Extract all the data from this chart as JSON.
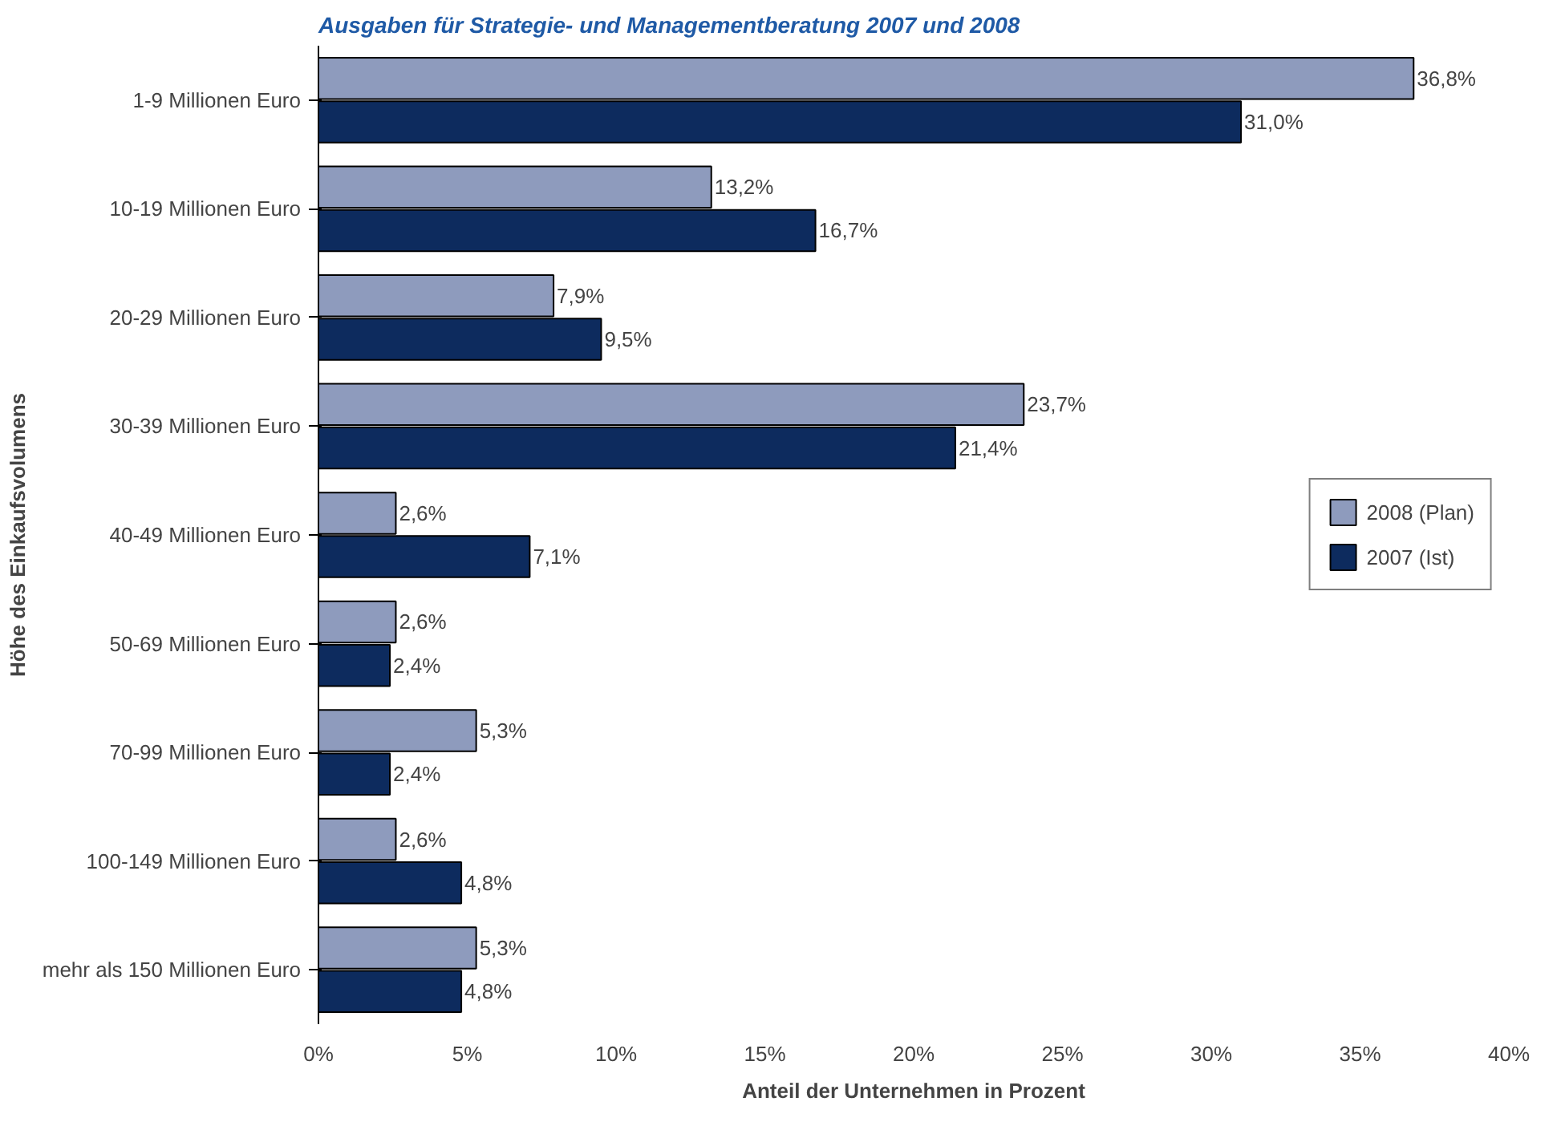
{
  "chart_data": {
    "type": "bar",
    "orientation": "horizontal",
    "title": "Ausgaben für Strategie- und Managementberatung 2007 und 2008",
    "xlabel": "Anteil der Unternehmen in Prozent",
    "ylabel": "Höhe des Einkaufsvolumens",
    "categories": [
      "1-9 Millionen Euro",
      "10-19 Millionen Euro",
      "20-29 Millionen Euro",
      "30-39 Millionen Euro",
      "40-49 Millionen Euro",
      "50-69 Millionen Euro",
      "70-99 Millionen Euro",
      "100-149 Millionen Euro",
      "mehr als 150 Millionen Euro"
    ],
    "series": [
      {
        "name": "2008 (Plan)",
        "color": "#8e9bbd",
        "values": [
          36.8,
          13.2,
          7.9,
          23.7,
          2.6,
          2.6,
          5.3,
          2.6,
          5.3
        ],
        "value_labels": [
          "36,8%",
          "13,2%",
          "7,9%",
          "23,7%",
          "2,6%",
          "2,6%",
          "5,3%",
          "2,6%",
          "5,3%"
        ]
      },
      {
        "name": "2007 (Ist)",
        "color": "#0d2b5e",
        "values": [
          31.0,
          16.7,
          9.5,
          21.4,
          7.1,
          2.4,
          2.4,
          4.8,
          4.8
        ],
        "value_labels": [
          "31,0%",
          "16,7%",
          "9,5%",
          "21,4%",
          "7,1%",
          "2,4%",
          "2,4%",
          "4,8%",
          "4,8%"
        ]
      }
    ],
    "xlim": [
      0,
      40
    ],
    "xticks": [
      {
        "value": 0,
        "label": "0%"
      },
      {
        "value": 5,
        "label": "5%"
      },
      {
        "value": 10,
        "label": "10%"
      },
      {
        "value": 15,
        "label": "15%"
      },
      {
        "value": 20,
        "label": "20%"
      },
      {
        "value": 25,
        "label": "25%"
      },
      {
        "value": 30,
        "label": "30%"
      },
      {
        "value": 35,
        "label": "35%"
      },
      {
        "value": 40,
        "label": "40%"
      }
    ],
    "grid": false,
    "legend": "right"
  }
}
